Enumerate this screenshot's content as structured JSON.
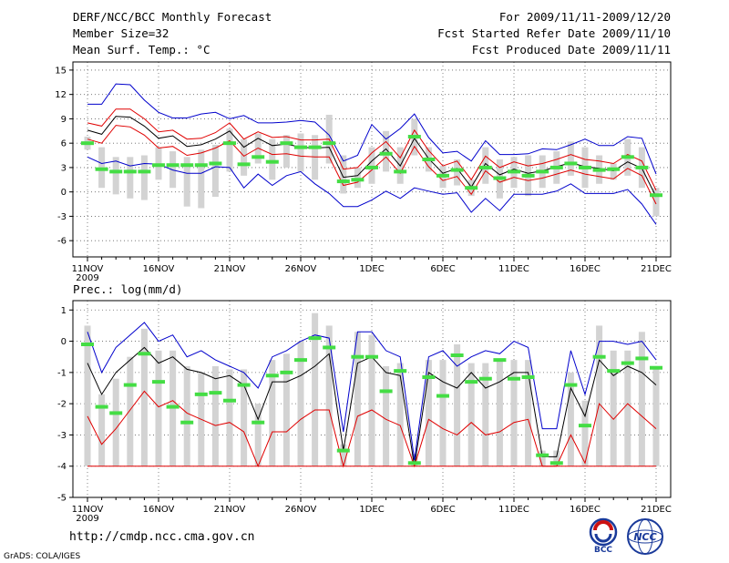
{
  "header": {
    "left": [
      "DERF/NCC/BCC Monthly Forecast",
      "Member Size=32",
      "Mean Surf. Temp.: °C"
    ],
    "right": [
      "For 2009/11/11-2009/12/20",
      "Fcst Started Refer Date 2009/11/10",
      "Fcst Produced Date 2009/11/11"
    ]
  },
  "footer": {
    "url": "http://cmdp.ncc.cma.gov.cn",
    "credit": "GrADS: COLA/IGES",
    "logo_bcc": "BCC",
    "logo_ncc": "NCC"
  },
  "colors": {
    "box": "#d3d3d3",
    "median": "#44dd44",
    "max": "#0000cc",
    "mean_hi": "#e00000",
    "mean": "#000000",
    "mean_lo": "#e00000",
    "grid": "#666666"
  },
  "chart_data": [
    {
      "type": "line",
      "title": "Mean Surf. Temp.: °C",
      "ylabel": "°C",
      "ylim": [
        -8,
        16
      ],
      "yticks": [
        15,
        12,
        9,
        6,
        3,
        0,
        -3,
        -6
      ],
      "xticks": [
        {
          "i": 0,
          "label": "11NOV",
          "sub": "2009"
        },
        {
          "i": 5,
          "label": "16NOV"
        },
        {
          "i": 10,
          "label": "21NOV"
        },
        {
          "i": 15,
          "label": "26NOV"
        },
        {
          "i": 20,
          "label": "1DEC"
        },
        {
          "i": 25,
          "label": "6DEC"
        },
        {
          "i": 30,
          "label": "11DEC"
        },
        {
          "i": 35,
          "label": "16DEC"
        },
        {
          "i": 40,
          "label": "21DEC"
        }
      ],
      "days": 40,
      "series": [
        {
          "name": "max",
          "color": "#0000cc",
          "values": [
            10.8,
            10.8,
            13.3,
            13.2,
            11.3,
            9.8,
            9.1,
            9.1,
            9.6,
            9.8,
            9.0,
            9.4,
            8.5,
            8.5,
            8.6,
            8.8,
            8.6,
            7.0,
            3.8,
            4.5,
            8.3,
            6.5,
            7.8,
            9.6,
            6.7,
            4.8,
            5.0,
            3.8,
            6.3,
            4.6,
            4.6,
            4.7,
            5.3,
            5.2,
            5.8,
            6.5,
            5.7,
            5.7,
            6.8,
            6.6,
            2.2
          ]
        },
        {
          "name": "mean_hi",
          "color": "#e00000",
          "values": [
            8.5,
            8.1,
            10.2,
            10.2,
            9.0,
            7.4,
            7.6,
            6.5,
            6.6,
            7.3,
            8.5,
            6.5,
            7.4,
            6.7,
            6.8,
            6.4,
            6.4,
            6.5,
            2.8,
            3.0,
            4.8,
            6.2,
            4.2,
            7.6,
            5.1,
            3.2,
            3.8,
            1.5,
            4.4,
            3.0,
            3.7,
            3.2,
            3.5,
            4.0,
            4.6,
            4.0,
            3.8,
            3.5,
            4.6,
            3.8,
            0.2
          ]
        },
        {
          "name": "mean",
          "color": "#000000",
          "values": [
            7.6,
            7.1,
            9.3,
            9.2,
            8.1,
            6.6,
            6.9,
            5.6,
            5.8,
            6.5,
            7.5,
            5.5,
            6.6,
            5.7,
            5.9,
            5.5,
            5.4,
            5.5,
            1.8,
            2.0,
            3.8,
            5.3,
            3.2,
            6.6,
            4.1,
            2.3,
            2.9,
            0.6,
            3.5,
            2.1,
            2.8,
            2.3,
            2.6,
            3.1,
            3.6,
            3.1,
            2.9,
            2.6,
            3.7,
            2.9,
            -0.6
          ]
        },
        {
          "name": "mean_lo",
          "color": "#e00000",
          "values": [
            6.5,
            6.0,
            8.2,
            8.0,
            7.0,
            5.4,
            5.6,
            4.5,
            4.8,
            5.4,
            6.3,
            4.4,
            5.4,
            4.6,
            4.7,
            4.4,
            4.3,
            4.3,
            0.8,
            1.2,
            2.7,
            4.3,
            2.3,
            5.6,
            3.1,
            1.4,
            1.9,
            -0.3,
            2.6,
            1.2,
            1.8,
            1.4,
            1.7,
            2.2,
            2.7,
            2.2,
            1.9,
            1.6,
            2.9,
            2.0,
            -1.5
          ]
        },
        {
          "name": "min",
          "color": "#0000cc",
          "values": [
            4.3,
            3.5,
            3.8,
            3.2,
            3.5,
            3.4,
            2.7,
            2.3,
            2.3,
            3.1,
            3.0,
            0.5,
            2.2,
            0.8,
            2.0,
            2.5,
            1.0,
            -0.2,
            -1.8,
            -1.8,
            -1.0,
            0.1,
            -0.8,
            0.5,
            0.1,
            -0.3,
            -0.1,
            -2.5,
            -0.8,
            -2.3,
            -0.3,
            -0.3,
            -0.3,
            0.1,
            1.0,
            -0.2,
            -0.2,
            -0.2,
            0.3,
            -1.5,
            -4.0
          ]
        }
      ],
      "boxes": [
        {
          "lo": 5.2,
          "hi": 6.8
        },
        {
          "lo": 0.5,
          "hi": 5.5
        },
        {
          "lo": -0.3,
          "hi": 4.3
        },
        {
          "lo": -0.8,
          "hi": 4.3
        },
        {
          "lo": -1.0,
          "hi": 4.5
        },
        {
          "lo": 1.5,
          "hi": 5.5
        },
        {
          "lo": 0.5,
          "hi": 5.0
        },
        {
          "lo": -1.8,
          "hi": 4.3
        },
        {
          "lo": -2.0,
          "hi": 5.2
        },
        {
          "lo": -0.6,
          "hi": 5.8
        },
        {
          "lo": 2.5,
          "hi": 7.8
        },
        {
          "lo": 2.0,
          "hi": 6.5
        },
        {
          "lo": 3.5,
          "hi": 7.2
        },
        {
          "lo": 1.5,
          "hi": 6.5
        },
        {
          "lo": 3.0,
          "hi": 7.0
        },
        {
          "lo": 2.5,
          "hi": 7.2
        },
        {
          "lo": 1.5,
          "hi": 7.0
        },
        {
          "lo": 3.5,
          "hi": 9.5
        },
        {
          "lo": -0.2,
          "hi": 4.5
        },
        {
          "lo": 0.5,
          "hi": 3.0
        },
        {
          "lo": 1.0,
          "hi": 5.5
        },
        {
          "lo": 2.5,
          "hi": 7.5
        },
        {
          "lo": 1.0,
          "hi": 5.5
        },
        {
          "lo": 4.5,
          "hi": 9.0
        },
        {
          "lo": 2.5,
          "hi": 5.5
        },
        {
          "lo": 0.5,
          "hi": 3.2
        },
        {
          "lo": 0.8,
          "hi": 4.0
        },
        {
          "lo": -0.5,
          "hi": 1.5
        },
        {
          "lo": 1.0,
          "hi": 5.5
        },
        {
          "lo": -0.8,
          "hi": 4.0
        },
        {
          "lo": 0.5,
          "hi": 4.3
        },
        {
          "lo": -0.5,
          "hi": 4.5
        },
        {
          "lo": 0.5,
          "hi": 4.5
        },
        {
          "lo": 1.0,
          "hi": 5.0
        },
        {
          "lo": 2.0,
          "hi": 6.2
        },
        {
          "lo": 0.5,
          "hi": 5.5
        },
        {
          "lo": 1.0,
          "hi": 4.5
        },
        {
          "lo": 1.5,
          "hi": 3.5
        },
        {
          "lo": 2.0,
          "hi": 6.5
        },
        {
          "lo": 0.5,
          "hi": 5.5
        },
        {
          "lo": -3.0,
          "hi": 0.5
        }
      ],
      "medians": [
        6.0,
        2.8,
        2.5,
        2.5,
        2.5,
        3.3,
        3.3,
        3.3,
        3.3,
        3.5,
        6.0,
        3.4,
        4.3,
        3.7,
        6.0,
        5.5,
        5.5,
        6.0,
        1.3,
        1.5,
        3.0,
        4.7,
        2.5,
        6.8,
        4.0,
        2.0,
        2.7,
        0.5,
        3.0,
        1.7,
        2.5,
        2.0,
        2.5,
        3.0,
        3.5,
        3.0,
        2.7,
        2.8,
        4.3,
        3.0,
        -0.4
      ]
    },
    {
      "type": "line",
      "title": "Prec.: log(mm/d)",
      "ylabel": "log(mm/d)",
      "ylim": [
        -5,
        1.3
      ],
      "yticks": [
        1,
        0,
        -1,
        -2,
        -3,
        -4,
        -5
      ],
      "xticks": [
        {
          "i": 0,
          "label": "11NOV",
          "sub": "2009"
        },
        {
          "i": 5,
          "label": "16NOV"
        },
        {
          "i": 10,
          "label": "21NOV"
        },
        {
          "i": 15,
          "label": "26NOV"
        },
        {
          "i": 20,
          "label": "1DEC"
        },
        {
          "i": 25,
          "label": "6DEC"
        },
        {
          "i": 30,
          "label": "11DEC"
        },
        {
          "i": 35,
          "label": "16DEC"
        },
        {
          "i": 40,
          "label": "21DEC"
        }
      ],
      "days": 40,
      "series": [
        {
          "name": "max",
          "color": "#0000cc",
          "values": [
            0.3,
            -1.0,
            -0.2,
            0.2,
            0.6,
            0.0,
            0.2,
            -0.5,
            -0.3,
            -0.6,
            -0.8,
            -1.0,
            -1.5,
            -0.5,
            -0.3,
            0.0,
            0.2,
            0.1,
            -2.9,
            0.3,
            0.3,
            -0.3,
            -0.5,
            -3.8,
            -0.5,
            -0.3,
            -0.8,
            -0.5,
            -0.3,
            -0.4,
            0.0,
            -0.2,
            -2.8,
            -2.8,
            -0.3,
            -1.7,
            0.0,
            0.0,
            -0.1,
            0.0,
            -0.6
          ]
        },
        {
          "name": "mean",
          "color": "#000000",
          "values": [
            -0.7,
            -1.7,
            -1.0,
            -0.6,
            -0.2,
            -0.7,
            -0.5,
            -0.9,
            -1.0,
            -1.2,
            -1.1,
            -1.4,
            -2.5,
            -1.3,
            -1.3,
            -1.1,
            -0.8,
            -0.4,
            -3.5,
            -0.7,
            -0.5,
            -1.0,
            -1.1,
            -4.0,
            -1.0,
            -1.3,
            -1.5,
            -1.0,
            -1.5,
            -1.3,
            -1.0,
            -1.0,
            -3.7,
            -3.7,
            -1.5,
            -2.4,
            -0.6,
            -1.1,
            -0.8,
            -1.0,
            -1.4
          ]
        },
        {
          "name": "mean_lo",
          "color": "#e00000",
          "values": [
            -2.4,
            -3.3,
            -2.8,
            -2.2,
            -1.6,
            -2.1,
            -1.9,
            -2.3,
            -2.5,
            -2.7,
            -2.6,
            -2.9,
            -4.0,
            -2.9,
            -2.9,
            -2.5,
            -2.2,
            -2.2,
            -4.0,
            -2.4,
            -2.2,
            -2.5,
            -2.7,
            -4.0,
            -2.5,
            -2.8,
            -3.0,
            -2.6,
            -3.0,
            -2.9,
            -2.6,
            -2.5,
            -4.0,
            -4.0,
            -3.0,
            -3.9,
            -2.0,
            -2.5,
            -2.0,
            -2.4,
            -2.8
          ]
        },
        {
          "name": "floor",
          "color": "#e00000",
          "values": [
            -4.0,
            -4.0,
            -4.0,
            -4.0,
            -4.0,
            -4.0,
            -4.0,
            -4.0,
            -4.0,
            -4.0,
            -4.0,
            -4.0,
            -4.0,
            -4.0,
            -4.0,
            -4.0,
            -4.0,
            -4.0,
            -4.0,
            -4.0,
            -4.0,
            -4.0,
            -4.0,
            -4.0,
            -4.0,
            -4.0,
            -4.0,
            -4.0,
            -4.0,
            -4.0,
            -4.0,
            -4.0,
            -4.0,
            -4.0,
            -4.0,
            -4.0,
            -4.0,
            -4.0,
            -4.0,
            -4.0,
            -4.0
          ]
        }
      ],
      "boxes": [
        {
          "lo": -4.0,
          "hi": 0.5
        },
        {
          "lo": -4.0,
          "hi": -1.7
        },
        {
          "lo": -4.0,
          "hi": -1.2
        },
        {
          "lo": -4.0,
          "hi": -0.5
        },
        {
          "lo": -4.0,
          "hi": 0.4
        },
        {
          "lo": -4.0,
          "hi": -0.3
        },
        {
          "lo": -4.0,
          "hi": -0.3
        },
        {
          "lo": -4.0,
          "hi": -0.8
        },
        {
          "lo": -4.0,
          "hi": -1.0
        },
        {
          "lo": -4.0,
          "hi": -0.8
        },
        {
          "lo": -4.0,
          "hi": -0.9
        },
        {
          "lo": -4.0,
          "hi": -0.9
        },
        {
          "lo": -4.0,
          "hi": -2.0
        },
        {
          "lo": -4.0,
          "hi": -0.6
        },
        {
          "lo": -4.0,
          "hi": -0.4
        },
        {
          "lo": -4.0,
          "hi": 0.0
        },
        {
          "lo": -4.0,
          "hi": 0.9
        },
        {
          "lo": -4.0,
          "hi": 0.5
        },
        {
          "lo": -4.0,
          "hi": -3.3
        },
        {
          "lo": -4.0,
          "hi": 0.3
        },
        {
          "lo": -4.0,
          "hi": 0.2
        },
        {
          "lo": -4.0,
          "hi": -0.8
        },
        {
          "lo": -4.0,
          "hi": -0.7
        },
        {
          "lo": -4.0,
          "hi": -3.6
        },
        {
          "lo": -4.0,
          "hi": -0.6
        },
        {
          "lo": -4.0,
          "hi": -0.6
        },
        {
          "lo": -4.0,
          "hi": -0.1
        },
        {
          "lo": -4.0,
          "hi": -0.7
        },
        {
          "lo": -4.0,
          "hi": -0.7
        },
        {
          "lo": -4.0,
          "hi": -0.6
        },
        {
          "lo": -4.0,
          "hi": -0.6
        },
        {
          "lo": -4.0,
          "hi": -0.6
        },
        {
          "lo": -4.0,
          "hi": -3.5
        },
        {
          "lo": -4.0,
          "hi": -3.5
        },
        {
          "lo": -4.0,
          "hi": -1.0
        },
        {
          "lo": -4.0,
          "hi": -1.9
        },
        {
          "lo": -4.0,
          "hi": 0.5
        },
        {
          "lo": -4.0,
          "hi": -0.3
        },
        {
          "lo": -4.0,
          "hi": -0.3
        },
        {
          "lo": -4.0,
          "hi": 0.3
        },
        {
          "lo": -4.0,
          "hi": -0.8
        }
      ],
      "medians": [
        -0.1,
        -2.1,
        -2.3,
        -1.4,
        -0.4,
        -1.3,
        -2.1,
        -2.6,
        -1.7,
        -1.65,
        -1.9,
        -1.4,
        -2.6,
        -1.1,
        -1.0,
        -0.6,
        0.1,
        -0.2,
        -3.5,
        -0.5,
        -0.5,
        -1.6,
        -0.95,
        -3.9,
        -1.15,
        -1.75,
        -0.45,
        -1.3,
        -1.2,
        -0.6,
        -1.2,
        -1.15,
        -3.65,
        -3.9,
        -1.4,
        -2.7,
        -0.5,
        -0.95,
        -0.7,
        -0.55,
        -0.85
      ]
    }
  ]
}
